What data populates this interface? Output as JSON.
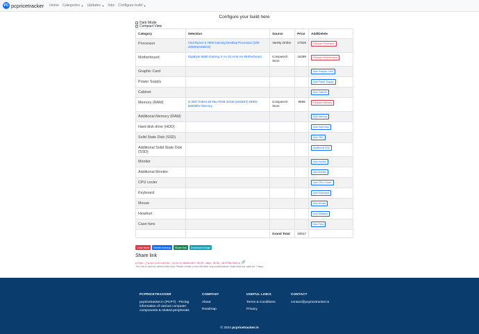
{
  "nav": {
    "brand": "pcpricetracker",
    "items": [
      {
        "label": "Home",
        "dropdown": false
      },
      {
        "label": "Categories",
        "dropdown": true
      },
      {
        "label": "Updates",
        "dropdown": true
      },
      {
        "label": "Inbx",
        "dropdown": false
      },
      {
        "label": "Configure build",
        "dropdown": true
      }
    ]
  },
  "title": "Configure your build here",
  "options": {
    "dark_mode": "Dark Mode",
    "compact_view": "Compact View"
  },
  "table": {
    "headers": {
      "category": "Category",
      "selection": "Selection",
      "source": "Source",
      "price": "Price",
      "action": "Add/Delete"
    },
    "rows": [
      {
        "category": "Processor",
        "selection": "Amd Ryzen 5 7600 Gaming Desktop Processor (100-100001015BOX)",
        "source": "Variety Online",
        "price": "17919",
        "action": "Remove Processor",
        "removable": true
      },
      {
        "category": "Motherboard",
        "selection": "Gigabyte B650 Gaming X Ax V2 Am5 Atx Motherboard",
        "source": "Computech Store",
        "price": "16299",
        "action": "Remove Motherboard",
        "removable": true
      },
      {
        "category": "Graphic Card",
        "selection": "",
        "source": "",
        "price": "",
        "action": "Add Graphic Card",
        "removable": false
      },
      {
        "category": "Power Supply",
        "selection": "",
        "source": "",
        "price": "",
        "action": "Add Power Supply",
        "removable": false
      },
      {
        "category": "Cabinet",
        "selection": "",
        "source": "",
        "price": "",
        "action": "Add Cabinet",
        "removable": false
      },
      {
        "category": "Memory (RAM)",
        "selection": "G.Skill Trident Z5 Neo RGB 32GB (16GBX2) DDR5 6000Mhz Memory",
        "source": "Computech Store",
        "price": "9699",
        "action": "Remove Memory",
        "removable": true
      },
      {
        "category": "Additional Memory (RAM)",
        "selection": "",
        "source": "",
        "price": "",
        "action": "Add Memory",
        "removable": false
      },
      {
        "category": "Hard disk drive (HDD)",
        "selection": "",
        "source": "",
        "price": "",
        "action": "Add Hard disk",
        "removable": false
      },
      {
        "category": "Solid State Disk (SSD)",
        "selection": "",
        "source": "",
        "price": "",
        "action": "Add SSD",
        "removable": false
      },
      {
        "category": "Additional Solid State Disk (SSD)",
        "selection": "",
        "source": "",
        "price": "",
        "action": "Additional SSD",
        "removable": false
      },
      {
        "category": "Monitor",
        "selection": "",
        "source": "",
        "price": "",
        "action": "Add Monitor",
        "removable": false
      },
      {
        "category": "Additional Monitor",
        "selection": "",
        "source": "",
        "price": "",
        "action": "Add Monitor",
        "removable": false
      },
      {
        "category": "CPU cooler",
        "selection": "",
        "source": "",
        "price": "",
        "action": "Add CPU Cooler",
        "removable": false
      },
      {
        "category": "Keyboard",
        "selection": "",
        "source": "",
        "price": "",
        "action": "Add Keyboard",
        "removable": false
      },
      {
        "category": "Mouse",
        "selection": "",
        "source": "",
        "price": "",
        "action": "Add Mouse",
        "removable": false
      },
      {
        "category": "Headset",
        "selection": "",
        "source": "",
        "price": "",
        "action": "Add Headset",
        "removable": false
      },
      {
        "category": "Case fans",
        "selection": "",
        "source": "",
        "price": "",
        "action": "Add Fans",
        "removable": false
      }
    ],
    "grand_total_label": "Grand Total",
    "grand_total": "43917"
  },
  "buttons": {
    "clear": "Clear build",
    "reddit": "Reddit markup",
    "share": "Share link",
    "download": "Download image"
  },
  "share": {
    "title": "Share link",
    "url": "https://pcpricetracker.in/b/s/a6a8fa67-8e29-4dac-9b3e-c8f998c5041a",
    "note": "The link is valid for above build only. Please create a new link after any modifications. Build links are valid for 7 days."
  },
  "footer": {
    "col1": {
      "head": "PCPRICETRACKER",
      "body": "pcpricetracker.in (PCPT) - Pricing information of various computer components & related peripherals"
    },
    "col2": {
      "head": "COMPANY",
      "links": [
        "About",
        "Roadmap"
      ]
    },
    "col3": {
      "head": "USEFUL LINKS",
      "links": [
        "Terms & Conditions",
        "Privacy"
      ]
    },
    "col4": {
      "head": "CONTACT",
      "body": "contact@pcpricetracker.in"
    },
    "copyright_prefix": "© 2024",
    "copyright_site": "pcpricetracker.in"
  },
  "colors": {
    "primary": "#0d6efd",
    "danger": "#dc3545",
    "success": "#198754",
    "info": "#17a2b8",
    "footer": "#0a3d6e"
  },
  "icons": {
    "copy": "link-icon"
  }
}
